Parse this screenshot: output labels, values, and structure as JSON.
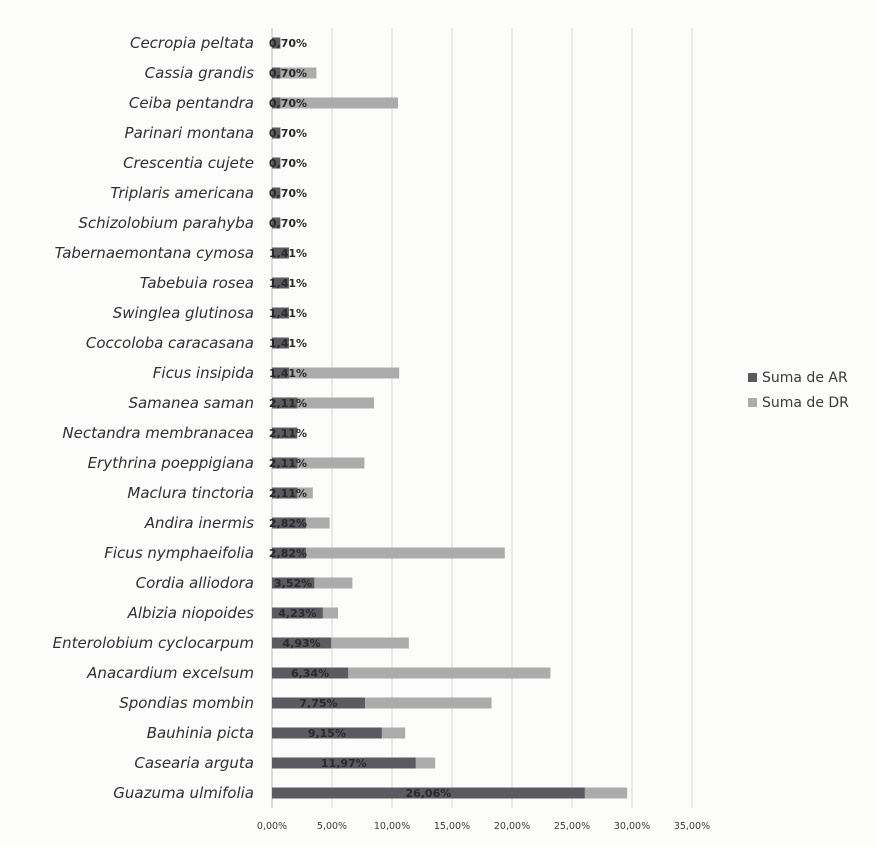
{
  "chart_data": {
    "type": "bar",
    "orientation": "horizontal",
    "categories": [
      "Cecropia peltata",
      "Cassia grandis",
      "Ceiba pentandra",
      "Parinari montana",
      "Crescentia cujete",
      "Triplaris americana",
      "Schizolobium parahyba",
      "Tabernaemontana cymosa",
      "Tabebuia rosea",
      "Swinglea glutinosa",
      "Coccoloba caracasana",
      "Ficus insipida",
      "Samanea saman",
      "Nectandra membranacea",
      "Erythrina poeppigiana",
      "Maclura tinctoria",
      "Andira inermis",
      "Ficus nymphaeifolia",
      "Cordia alliodora",
      "Albizia niopoides",
      "Enterolobium cyclocarpum",
      "Anacardium excelsum",
      "Spondias mombin",
      "Bauhinia picta",
      "Casearia arguta",
      "Guazuma ulmifolia"
    ],
    "series": [
      {
        "name": "Suma de AR",
        "color": "#5a5a60",
        "values": [
          0.7,
          0.7,
          0.7,
          0.7,
          0.7,
          0.7,
          0.7,
          1.41,
          1.41,
          1.41,
          1.41,
          1.41,
          2.11,
          2.11,
          2.11,
          2.11,
          2.82,
          2.82,
          3.52,
          4.23,
          4.93,
          6.34,
          7.75,
          9.15,
          11.97,
          26.06
        ],
        "labels": [
          "0,70%",
          "0,70%",
          "0,70%",
          "0,70%",
          "0,70%",
          "0,70%",
          "0,70%",
          "1,41%",
          "1,41%",
          "1,41%",
          "1,41%",
          "1,41%",
          "2,11%",
          "2,11%",
          "2,11%",
          "2,11%",
          "2,82%",
          "2,82%",
          "3,52%",
          "4,23%",
          "4,93%",
          "6,34%",
          "7,75%",
          "9,15%",
          "11,97%",
          "26,06%"
        ]
      },
      {
        "name": "Suma de DR",
        "color": "#ababab",
        "values": [
          0.3,
          3.7,
          10.5,
          0.3,
          0.3,
          0.3,
          0.3,
          0.3,
          0.3,
          0.3,
          0.3,
          10.6,
          8.5,
          0.3,
          7.7,
          3.4,
          4.8,
          19.4,
          6.7,
          5.5,
          11.4,
          23.2,
          18.3,
          11.1,
          13.6,
          29.6
        ]
      }
    ],
    "xlim": [
      0,
      35
    ],
    "xticks": [
      "0,00%",
      "5,00%",
      "10,00%",
      "15,00%",
      "20,00%",
      "25,00%",
      "30,00%",
      "35,00%"
    ],
    "grid": true,
    "legend_position": "right",
    "title": "",
    "xlabel": "",
    "ylabel": ""
  }
}
